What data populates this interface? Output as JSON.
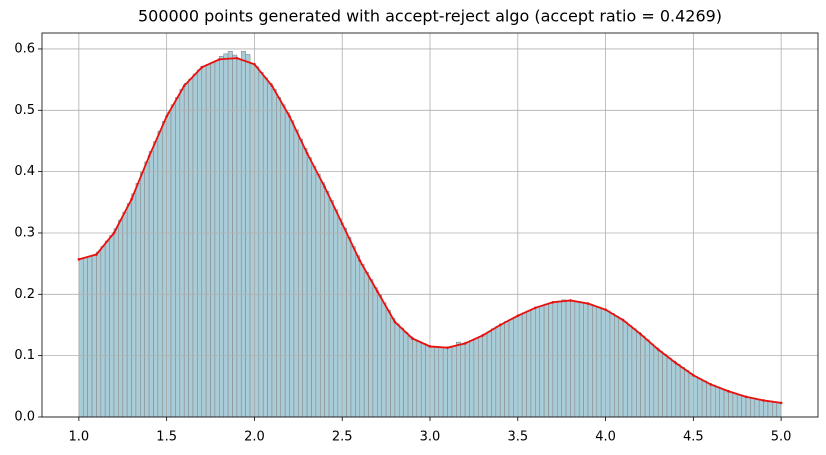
{
  "chart_data": {
    "type": "histogram",
    "title": "500000 points generated with accept-reject algo (accept ratio = 0.4269)",
    "bins": [
      1,
      1.025,
      1.05,
      1.075,
      1.1,
      1.125,
      1.15,
      1.175,
      1.2,
      1.225,
      1.25,
      1.275,
      1.3,
      1.325,
      1.35,
      1.375,
      1.4,
      1.425,
      1.45,
      1.475,
      1.5,
      1.525,
      1.55,
      1.575,
      1.6,
      1.625,
      1.65,
      1.675,
      1.7,
      1.725,
      1.75,
      1.775,
      1.8,
      1.825,
      1.85,
      1.875,
      1.9,
      1.925,
      1.95,
      1.975,
      2,
      2.025,
      2.05,
      2.075,
      2.1,
      2.125,
      2.15,
      2.175,
      2.2,
      2.225,
      2.25,
      2.275,
      2.3,
      2.325,
      2.35,
      2.375,
      2.4,
      2.425,
      2.45,
      2.475,
      2.5,
      2.525,
      2.55,
      2.575,
      2.6,
      2.625,
      2.65,
      2.675,
      2.7,
      2.725,
      2.75,
      2.775,
      2.8,
      2.825,
      2.85,
      2.875,
      2.9,
      2.925,
      2.95,
      2.975,
      3,
      3.025,
      3.05,
      3.075,
      3.1,
      3.125,
      3.15,
      3.175,
      3.2,
      3.225,
      3.25,
      3.275,
      3.3,
      3.325,
      3.35,
      3.375,
      3.4,
      3.425,
      3.45,
      3.475,
      3.5,
      3.525,
      3.55,
      3.575,
      3.6,
      3.625,
      3.65,
      3.675,
      3.7,
      3.725,
      3.75,
      3.775,
      3.8,
      3.825,
      3.85,
      3.875,
      3.9,
      3.925,
      3.95,
      3.975,
      4,
      4.025,
      4.05,
      4.075,
      4.1,
      4.125,
      4.15,
      4.175,
      4.2,
      4.225,
      4.25,
      4.275,
      4.3,
      4.325,
      4.35,
      4.375,
      4.4,
      4.425,
      4.45,
      4.475,
      4.5,
      4.525,
      4.55,
      4.575,
      4.6,
      4.625,
      4.65,
      4.675,
      4.7,
      4.725,
      4.75,
      4.775,
      4.8,
      4.825,
      4.85,
      4.875,
      4.9,
      4.925,
      4.95,
      4.975,
      5
    ],
    "values": [
      0.258,
      0.26,
      0.262,
      0.264,
      0.269,
      0.278,
      0.287,
      0.296,
      0.307,
      0.321,
      0.334,
      0.348,
      0.364,
      0.381,
      0.399,
      0.416,
      0.433,
      0.449,
      0.466,
      0.482,
      0.496,
      0.509,
      0.521,
      0.534,
      0.544,
      0.551,
      0.559,
      0.566,
      0.572,
      0.575,
      0.578,
      0.581,
      0.588,
      0.592,
      0.596,
      0.59,
      0.584,
      0.596,
      0.591,
      0.576,
      0.571,
      0.562,
      0.553,
      0.544,
      0.534,
      0.521,
      0.509,
      0.496,
      0.483,
      0.468,
      0.453,
      0.438,
      0.423,
      0.409,
      0.396,
      0.382,
      0.368,
      0.353,
      0.338,
      0.323,
      0.308,
      0.293,
      0.278,
      0.263,
      0.249,
      0.236,
      0.224,
      0.211,
      0.199,
      0.186,
      0.174,
      0.161,
      0.152,
      0.145,
      0.138,
      0.131,
      0.126,
      0.123,
      0.12,
      0.117,
      0.115,
      0.114,
      0.114,
      0.113,
      0.114,
      0.116,
      0.122,
      0.119,
      0.122,
      0.125,
      0.128,
      0.131,
      0.135,
      0.139,
      0.144,
      0.148,
      0.152,
      0.156,
      0.159,
      0.163,
      0.167,
      0.17,
      0.173,
      0.176,
      0.179,
      0.181,
      0.184,
      0.186,
      0.187,
      0.189,
      0.191,
      0.19,
      0.189,
      0.188,
      0.187,
      0.186,
      0.184,
      0.181,
      0.179,
      0.176,
      0.173,
      0.169,
      0.164,
      0.16,
      0.155,
      0.149,
      0.144,
      0.138,
      0.132,
      0.126,
      0.119,
      0.113,
      0.107,
      0.102,
      0.096,
      0.091,
      0.086,
      0.081,
      0.076,
      0.071,
      0.066,
      0.062,
      0.059,
      0.055,
      0.052,
      0.049,
      0.046,
      0.043,
      0.041,
      0.039,
      0.036,
      0.034,
      0.032,
      0.031,
      0.029,
      0.028,
      0.027,
      0.026,
      0.024,
      0.023
    ],
    "color": "#a9cdd8",
    "edgecolor": "#8a8a8a",
    "curve": {
      "color": "#e8110f",
      "x": [
        1,
        1.1,
        1.2,
        1.3,
        1.4,
        1.5,
        1.6,
        1.7,
        1.8,
        1.9,
        2,
        2.1,
        2.2,
        2.3,
        2.4,
        2.5,
        2.6,
        2.7,
        2.8,
        2.9,
        3,
        3.1,
        3.2,
        3.3,
        3.4,
        3.5,
        3.6,
        3.7,
        3.8,
        3.9,
        4,
        4.1,
        4.2,
        4.3,
        4.4,
        4.5,
        4.6,
        4.7,
        4.8,
        4.9,
        5
      ],
      "values": [
        0.257,
        0.265,
        0.3,
        0.355,
        0.425,
        0.49,
        0.54,
        0.57,
        0.583,
        0.585,
        0.575,
        0.54,
        0.49,
        0.43,
        0.375,
        0.315,
        0.255,
        0.205,
        0.155,
        0.128,
        0.115,
        0.113,
        0.12,
        0.133,
        0.15,
        0.165,
        0.178,
        0.187,
        0.19,
        0.185,
        0.175,
        0.158,
        0.135,
        0.11,
        0.088,
        0.068,
        0.053,
        0.042,
        0.033,
        0.027,
        0.023
      ]
    },
    "xlim": [
      0.79,
      5.21
    ],
    "ylim": [
      0,
      0.626
    ],
    "xticks": [
      {
        "value": 1,
        "label": "1.0"
      },
      1.5,
      {
        "value": 2,
        "label": "2.0"
      },
      2.5,
      {
        "value": 3,
        "label": "3.0"
      },
      3.5,
      {
        "value": 4,
        "label": "4.0"
      },
      4.5,
      {
        "value": 5,
        "label": "5.0"
      }
    ],
    "yticks": [
      {
        "value": 0,
        "label": "0.0"
      },
      0.1,
      0.2,
      0.3,
      0.4,
      0.5,
      0.6
    ],
    "grid": true
  }
}
